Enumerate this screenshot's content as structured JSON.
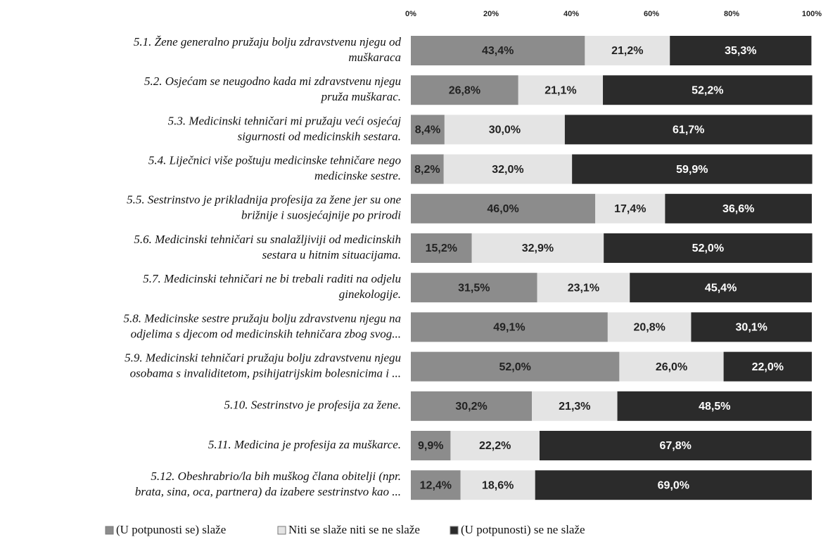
{
  "chart_data": {
    "type": "stacked-bar-horizontal",
    "categories": [
      [
        "5.1. Žene generalno pružaju bolju zdravstvenu njegu od",
        "muškaraca"
      ],
      [
        "5.2. Osjećam se neugodno kada mi zdravstvenu njegu",
        "pruža muškarac."
      ],
      [
        "5.3. Medicinski tehničari mi pružaju veći osjećaj",
        "sigurnosti od medicinskih sestara."
      ],
      [
        "5.4. Liječnici više poštuju medicinske tehničare nego",
        "medicinske sestre."
      ],
      [
        "5.5. Sestrinstvo je prikladnija profesija za žene jer su one",
        "brižnije i suosjećajnije po prirodi"
      ],
      [
        "5.6. Medicinski tehničari su snalažljiviji od medicinskih",
        "sestara u hitnim situacijama."
      ],
      [
        "5.7. Medicinski tehničari ne bi trebali raditi na odjelu",
        "ginekologije."
      ],
      [
        "5.8. Medicinske sestre pružaju bolju zdravstvenu njegu na",
        "odjelima s djecom od medicinskih tehničara zbog svog..."
      ],
      [
        "5.9. Medicinski tehničari pružaju bolju zdravstvenu njegu",
        "osobama s invaliditetom, psihijatrijskim bolesnicima i ..."
      ],
      [
        "5.10. Sestrinstvo je profesija za žene."
      ],
      [
        "5.11. Medicina je profesija za muškarce."
      ],
      [
        "5.12. Obeshrabrio/la bih muškog člana obitelji (npr.",
        "brata, sina, oca, partnera) da izabere sestrinstvo kao ..."
      ]
    ],
    "series": [
      {
        "name": "(U potpunosti se)  slaže",
        "color": "#8c8c8c",
        "text_color": "#222222",
        "values": [
          43.4,
          26.8,
          8.4,
          8.2,
          46.0,
          15.2,
          31.5,
          49.1,
          52.0,
          30.2,
          9.9,
          12.4
        ],
        "value_labels": [
          "43,4%",
          "26,8%",
          "8,4%",
          "8,2%",
          "46,0%",
          "15,2%",
          "31,5%",
          "49,1%",
          "52,0%",
          "30,2%",
          "9,9%",
          "12,4%"
        ]
      },
      {
        "name": "Niti se slaže niti se ne slaže",
        "color": "#e4e4e4",
        "text_color": "#222222",
        "values": [
          21.2,
          21.1,
          30.0,
          32.0,
          17.4,
          32.9,
          23.1,
          20.8,
          26.0,
          21.3,
          22.2,
          18.6
        ],
        "value_labels": [
          "21,2%",
          "21,1%",
          "30,0%",
          "32,0%",
          "17,4%",
          "32,9%",
          "23,1%",
          "20,8%",
          "26,0%",
          "21,3%",
          "22,2%",
          "18,6%"
        ]
      },
      {
        "name": "(U potpunosti) se ne slaže",
        "color": "#2b2b2b",
        "text_color": "#ffffff",
        "values": [
          35.3,
          52.2,
          61.7,
          59.9,
          36.6,
          52.0,
          45.4,
          30.1,
          22.0,
          48.5,
          67.8,
          69.0
        ],
        "value_labels": [
          "35,3%",
          "52,2%",
          "61,7%",
          "59,9%",
          "36,6%",
          "52,0%",
          "45,4%",
          "30,1%",
          "22,0%",
          "48,5%",
          "67,8%",
          "69,0%"
        ]
      }
    ],
    "xlim": [
      0,
      100
    ],
    "xticks": [
      {
        "value": 0,
        "label": "0%"
      },
      {
        "value": 20,
        "label": "20%"
      },
      {
        "value": 40,
        "label": "40%"
      },
      {
        "value": 60,
        "label": "60%"
      },
      {
        "value": 80,
        "label": "80%"
      },
      {
        "value": 100,
        "label": "100%"
      }
    ]
  }
}
